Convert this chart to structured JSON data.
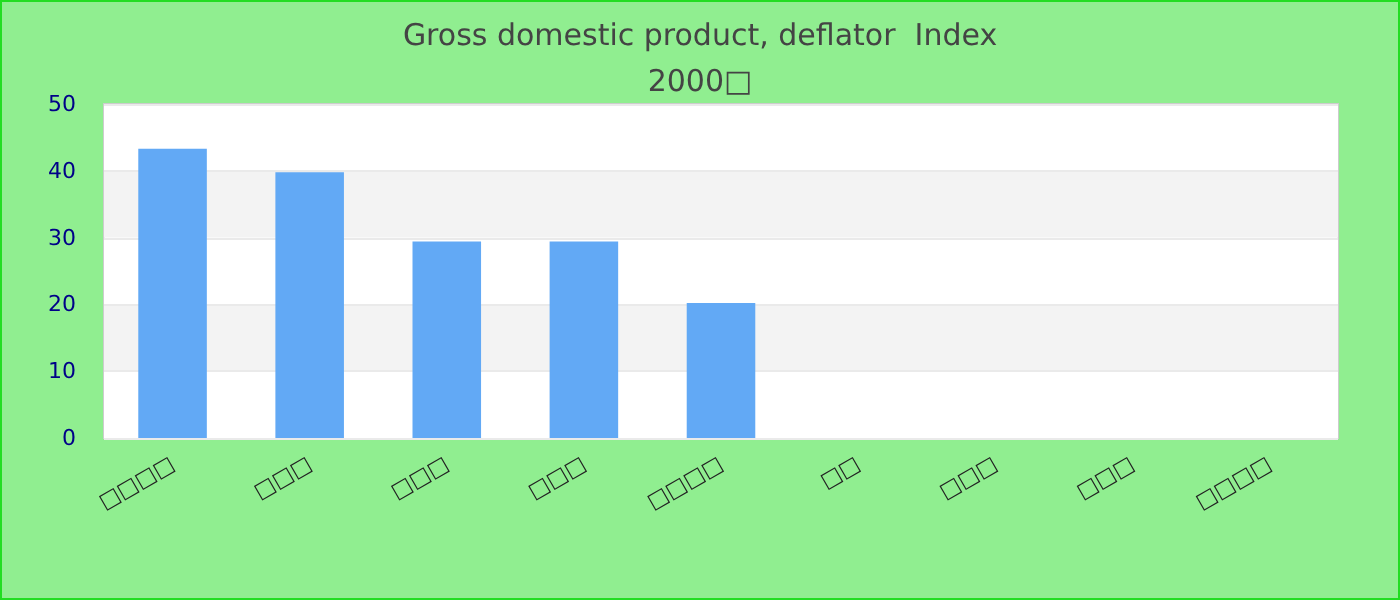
{
  "chart_data": {
    "type": "bar",
    "title": "Gross domestic product, deflator  Index",
    "subtitle": "2000□",
    "categories": [
      "□□□□",
      "□□□",
      "□□□",
      "□□□",
      "□□□□",
      "□□",
      "□□□",
      "□□□",
      "□□□□"
    ],
    "values": [
      43.3,
      39.8,
      29.4,
      29.4,
      20.2,
      null,
      null,
      null,
      null
    ],
    "color": "#62a9f5",
    "ylim": [
      0,
      50
    ],
    "yticks": [
      0,
      10,
      20,
      30,
      40,
      50
    ],
    "grid": "y"
  }
}
